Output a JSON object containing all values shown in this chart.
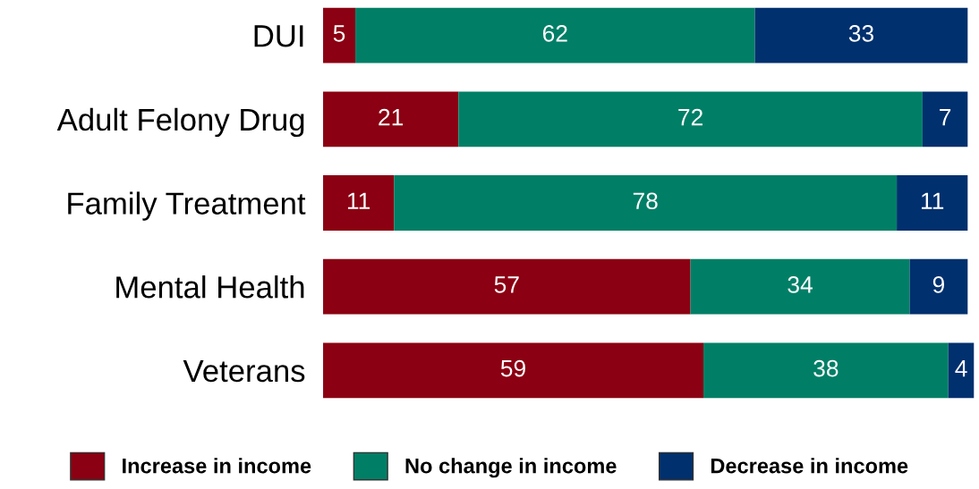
{
  "chart_data": {
    "type": "bar",
    "orientation": "horizontal",
    "stacked": true,
    "data_labels": true,
    "legend": "bottom",
    "grid": false,
    "tick_labels": "y",
    "categories": [
      "DUI",
      "Adult Felony Drug",
      "Family Treatment",
      "Mental Health",
      "Veterans"
    ],
    "series": [
      {
        "name": "Increase in income",
        "color": "#8b0012",
        "values": [
          5,
          21,
          11,
          57,
          59
        ]
      },
      {
        "name": "No change in income",
        "color": "#007f66",
        "values": [
          62,
          72,
          78,
          34,
          38
        ]
      },
      {
        "name": "Decrease in income",
        "color": "#00306e",
        "values": [
          33,
          7,
          11,
          9,
          4
        ]
      }
    ]
  }
}
